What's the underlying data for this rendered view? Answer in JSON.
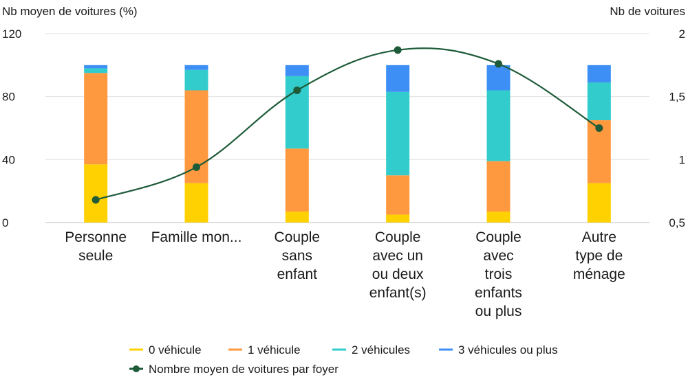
{
  "chart_data": {
    "type": "bar",
    "stacked": true,
    "left_axis_title": "Nb moyen de voitures (%)",
    "right_axis_title": "Nb de voitures",
    "ylim": [
      0,
      120
    ],
    "y_ticks": [
      "0",
      "40",
      "80",
      "120"
    ],
    "y2lim": [
      0.5,
      2
    ],
    "y2_ticks": [
      "0,5",
      "1",
      "1,5",
      "2"
    ],
    "categories": [
      [
        "Personne",
        "seule"
      ],
      [
        "Famille mon..."
      ],
      [
        "Couple",
        "sans",
        "enfant"
      ],
      [
        "Couple",
        "avec un",
        "ou deux",
        "enfant(s)"
      ],
      [
        "Couple",
        "avec",
        "trois",
        "enfants",
        "ou plus"
      ],
      [
        "Autre",
        "type de",
        "ménage"
      ]
    ],
    "series": [
      {
        "name": "0 véhicule",
        "color": "#FFD100",
        "values": [
          37,
          25,
          7,
          5,
          7,
          25
        ]
      },
      {
        "name": "1 véhicule",
        "color": "#FF9940",
        "values": [
          58,
          59,
          40,
          25,
          32,
          40
        ]
      },
      {
        "name": "2 véhicules",
        "color": "#33CCCC",
        "values": [
          3,
          13,
          46,
          53,
          45,
          24
        ]
      },
      {
        "name": "3 véhicules ou plus",
        "color": "#3D8FF5",
        "values": [
          2,
          3,
          7,
          17,
          16,
          11
        ]
      }
    ],
    "line_series": {
      "name": "Nombre moyen de voitures par foyer",
      "color": "#1D5B39",
      "axis": "right",
      "values": [
        0.68,
        0.94,
        1.55,
        1.87,
        1.76,
        1.25
      ]
    },
    "gridlines": true,
    "legend_position": "bottom"
  }
}
